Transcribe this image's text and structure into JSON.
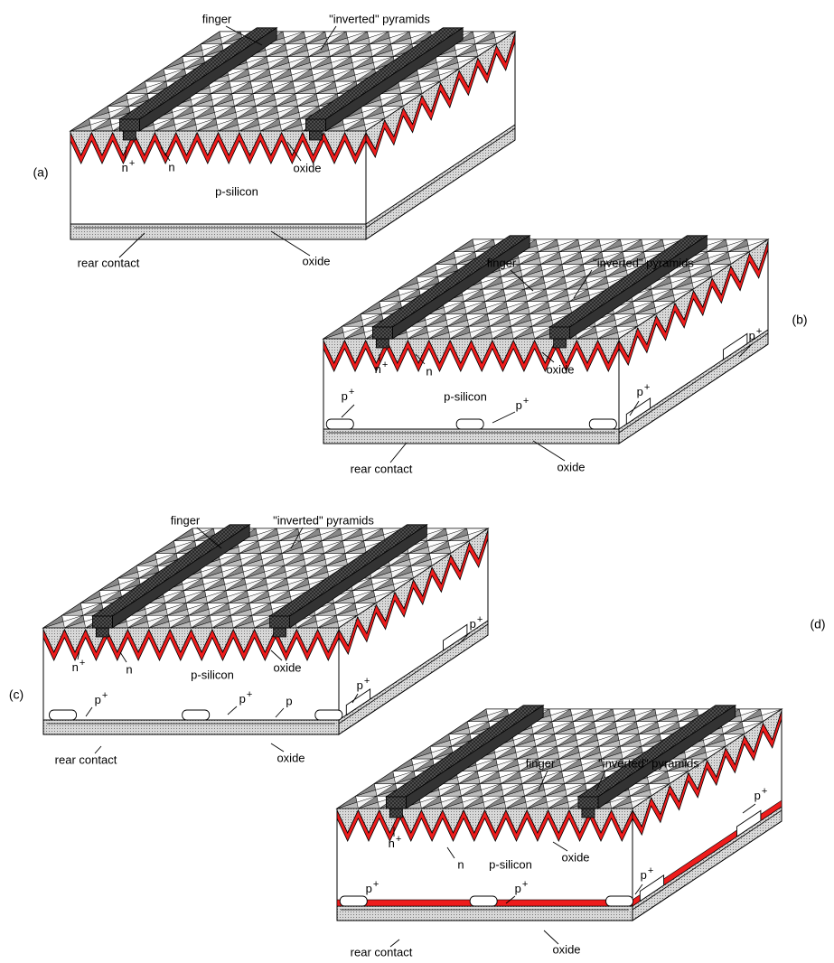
{
  "panels": [
    {
      "labels": [
        "finger",
        "\"inverted\" pyramids",
        {
          "base": "n",
          "sup": "+"
        },
        "n",
        "oxide",
        "p-silicon",
        "rear contact",
        "oxide",
        "(a)"
      ]
    },
    {
      "labels": [
        "finger",
        "\"inverted\" pyramids",
        {
          "base": "n",
          "sup": "+"
        },
        "n",
        "oxide",
        {
          "base": "p",
          "sup": "+"
        },
        "p-silicon",
        {
          "base": "p",
          "sup": "+"
        },
        {
          "base": "p",
          "sup": "+"
        },
        {
          "base": "p",
          "sup": "+"
        },
        "rear contact",
        "oxide",
        "(b)"
      ]
    },
    {
      "labels": [
        "finger",
        "\"inverted\" pyramids",
        {
          "base": "n",
          "sup": "+"
        },
        "n",
        "p-silicon",
        "oxide",
        {
          "base": "p",
          "sup": "+"
        },
        {
          "base": "p",
          "sup": "+"
        },
        {
          "base": "p",
          "sup": "+"
        },
        {
          "base": "p",
          "sup": "+"
        },
        "p",
        "rear contact",
        "oxide",
        "(c)"
      ]
    },
    {
      "labels": [
        "finger",
        "\"inverted\" pyramids",
        {
          "base": "n",
          "sup": "+"
        },
        "n",
        "p-silicon",
        "oxide",
        {
          "base": "p",
          "sup": "+"
        },
        {
          "base": "p",
          "sup": "+"
        },
        {
          "base": "p",
          "sup": "+"
        },
        {
          "base": "p",
          "sup": "+"
        },
        "rear contact",
        "oxide",
        "(d)"
      ]
    }
  ]
}
